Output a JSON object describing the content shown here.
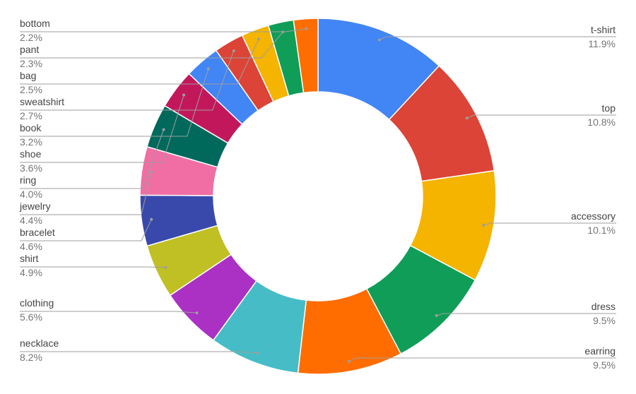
{
  "chart_data": {
    "type": "pie",
    "donut": true,
    "legend": "labels-on-sides",
    "slices": [
      {
        "label": "t-shirt",
        "pct_label": "11.9%",
        "value": 11.9,
        "color": "#4285f4"
      },
      {
        "label": "top",
        "pct_label": "10.8%",
        "value": 10.8,
        "color": "#db4437"
      },
      {
        "label": "accessory",
        "pct_label": "10.1%",
        "value": 10.1,
        "color": "#f4b400"
      },
      {
        "label": "dress",
        "pct_label": "9.5%",
        "value": 9.5,
        "color": "#0f9d58"
      },
      {
        "label": "earring",
        "pct_label": "9.5%",
        "value": 9.5,
        "color": "#ff6d00"
      },
      {
        "label": "necklace",
        "pct_label": "8.2%",
        "value": 8.2,
        "color": "#46bdc6"
      },
      {
        "label": "clothing",
        "pct_label": "5.6%",
        "value": 5.6,
        "color": "#ab30c4"
      },
      {
        "label": "shirt",
        "pct_label": "4.9%",
        "value": 4.9,
        "color": "#c0bf24"
      },
      {
        "label": "bracelet",
        "pct_label": "4.6%",
        "value": 4.6,
        "color": "#3949ab"
      },
      {
        "label": "jewelry",
        "pct_label": "4.4%",
        "value": 4.4,
        "color": "#f06ea4"
      },
      {
        "label": "ring",
        "pct_label": "4.0%",
        "value": 4.0,
        "color": "#00695c"
      },
      {
        "label": "shoe",
        "pct_label": "3.6%",
        "value": 3.6,
        "color": "#c2185b"
      },
      {
        "label": "book",
        "pct_label": "3.2%",
        "value": 3.2,
        "color": "#4285f4"
      },
      {
        "label": "sweatshirt",
        "pct_label": "2.7%",
        "value": 2.7,
        "color": "#db4437"
      },
      {
        "label": "bag",
        "pct_label": "2.5%",
        "value": 2.5,
        "color": "#f4b400"
      },
      {
        "label": "pant",
        "pct_label": "2.3%",
        "value": 2.3,
        "color": "#0f9d58"
      },
      {
        "label": "bottom",
        "pct_label": "2.2%",
        "value": 2.2,
        "color": "#ff6d00"
      }
    ]
  }
}
